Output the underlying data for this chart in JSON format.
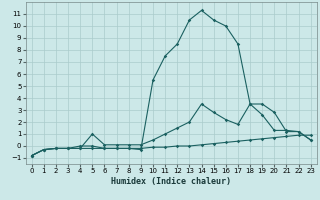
{
  "xlabel": "Humidex (Indice chaleur)",
  "background_color": "#cce8e8",
  "grid_color": "#aacccc",
  "line_color": "#1a6060",
  "xlim": [
    -0.5,
    23.5
  ],
  "ylim": [
    -1.5,
    12.0
  ],
  "yticks": [
    -1,
    0,
    1,
    2,
    3,
    4,
    5,
    6,
    7,
    8,
    9,
    10,
    11
  ],
  "xticks": [
    0,
    1,
    2,
    3,
    4,
    5,
    6,
    7,
    8,
    9,
    10,
    11,
    12,
    13,
    14,
    15,
    16,
    17,
    18,
    19,
    20,
    21,
    22,
    23
  ],
  "line1_x": [
    0,
    1,
    2,
    3,
    4,
    5,
    6,
    7,
    8,
    9,
    10,
    11,
    12,
    13,
    14,
    15,
    16,
    17,
    18,
    19,
    20,
    21,
    22,
    23
  ],
  "line1_y": [
    -0.8,
    -0.3,
    -0.2,
    -0.2,
    -0.2,
    -0.2,
    -0.2,
    -0.2,
    -0.2,
    -0.2,
    -0.1,
    -0.1,
    0.0,
    0.0,
    0.1,
    0.2,
    0.3,
    0.4,
    0.5,
    0.6,
    0.7,
    0.8,
    0.9,
    0.9
  ],
  "line2_x": [
    0,
    1,
    2,
    3,
    4,
    5,
    6,
    7,
    8,
    9,
    10,
    11,
    12,
    13,
    14,
    15,
    16,
    17,
    18,
    19,
    20,
    21,
    22,
    23
  ],
  "line2_y": [
    -0.8,
    -0.3,
    -0.2,
    -0.2,
    -0.2,
    1.0,
    0.1,
    0.1,
    0.1,
    0.1,
    0.5,
    1.0,
    1.5,
    2.0,
    3.5,
    2.8,
    2.2,
    1.8,
    3.5,
    2.6,
    1.3,
    1.3,
    1.2,
    0.5
  ],
  "line3_x": [
    0,
    1,
    2,
    3,
    4,
    5,
    6,
    7,
    8,
    9,
    10,
    11,
    12,
    13,
    14,
    15,
    16,
    17,
    18,
    19,
    20,
    21,
    22,
    23
  ],
  "line3_y": [
    -0.8,
    -0.3,
    -0.2,
    -0.2,
    0.0,
    0.0,
    -0.2,
    -0.2,
    -0.2,
    -0.3,
    5.5,
    7.5,
    8.5,
    10.5,
    11.3,
    10.5,
    10.0,
    8.5,
    3.5,
    3.5,
    2.8,
    1.2,
    1.2,
    0.5
  ]
}
